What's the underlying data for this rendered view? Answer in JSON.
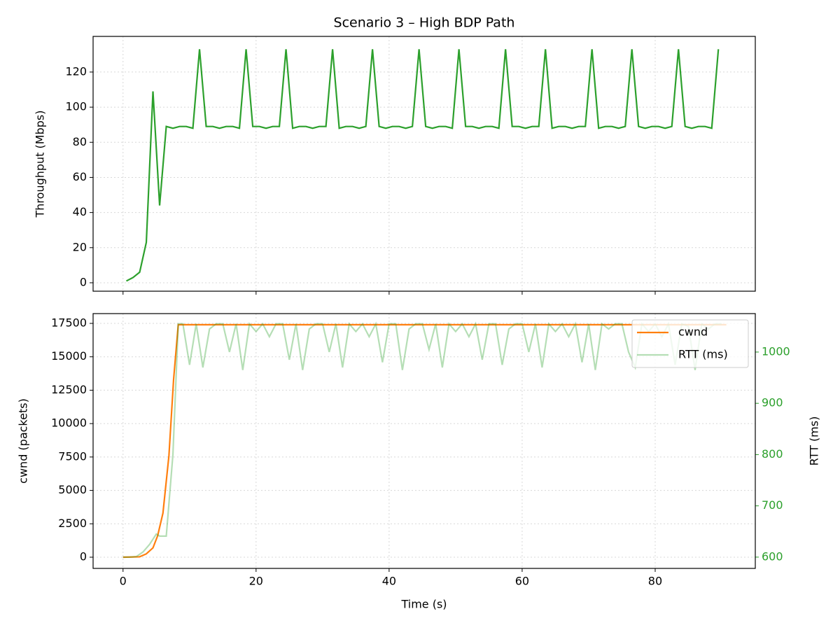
{
  "chart_data": [
    {
      "type": "line",
      "title": "Scenario 3 – High BDP Path",
      "ylabel": "Throughput (Mbps)",
      "color": "#2ca02c",
      "x": [
        0.5,
        1.5,
        2.5,
        3.5,
        4.5,
        5.5,
        6.5,
        7.5,
        8.5,
        9.5,
        10.5,
        11.5,
        12.5,
        13.5,
        14.5,
        15.5,
        16.5,
        17.5,
        18.5,
        19.5,
        20.5,
        21.5,
        22.5,
        23.5,
        24.5,
        25.5,
        26.5,
        27.5,
        28.5,
        29.5,
        30.5,
        31.5,
        32.5,
        33.5,
        34.5,
        35.5,
        36.5,
        37.5,
        38.5,
        39.5,
        40.5,
        41.5,
        42.5,
        43.5,
        44.5,
        45.5,
        46.5,
        47.5,
        48.5,
        49.5,
        50.5,
        51.5,
        52.5,
        53.5,
        54.5,
        55.5,
        56.5,
        57.5,
        58.5,
        59.5,
        60.5,
        61.5,
        62.5,
        63.5,
        64.5,
        65.5,
        66.5,
        67.5,
        68.5,
        69.5,
        70.5,
        71.5,
        72.5,
        73.5,
        74.5,
        75.5,
        76.5,
        77.5,
        78.5,
        79.5,
        80.5,
        81.5,
        82.5,
        83.5,
        84.5,
        85.5,
        86.5,
        87.5,
        88.5,
        89.5
      ],
      "values": [
        1,
        3,
        6,
        23,
        109,
        44,
        89,
        88,
        89,
        89,
        88,
        133,
        89,
        89,
        88,
        89,
        89,
        88,
        133,
        89,
        89,
        88,
        89,
        89,
        133,
        88,
        89,
        89,
        88,
        89,
        89,
        133,
        88,
        89,
        89,
        88,
        89,
        133,
        89,
        88,
        89,
        89,
        88,
        89,
        133,
        89,
        88,
        89,
        89,
        88,
        133,
        89,
        89,
        88,
        89,
        89,
        88,
        133,
        89,
        89,
        88,
        89,
        89,
        133,
        88,
        89,
        89,
        88,
        89,
        89,
        133,
        88,
        89,
        89,
        88,
        89,
        133,
        89,
        88,
        89,
        89,
        88,
        89,
        133,
        89,
        88,
        89,
        89,
        88,
        133
      ],
      "xlim": [
        -4.5,
        95.05
      ],
      "xticks": [
        0,
        20,
        40,
        60,
        80
      ],
      "ylim": [
        -4.8,
        140.3
      ],
      "yticks": [
        0,
        20,
        40,
        60,
        80,
        100,
        120
      ],
      "grid": true
    },
    {
      "type": "line",
      "xlabel": "Time (s)",
      "ylabel": "cwnd (packets)",
      "y2label": "RTT (ms)",
      "xlim": [
        -4.5,
        95.05
      ],
      "xticks": [
        0,
        20,
        40,
        60,
        80
      ],
      "ylim": [
        -838,
        18233
      ],
      "yticks": [
        0,
        2500,
        5000,
        7500,
        10000,
        12500,
        15000,
        17500
      ],
      "y2lim": [
        578,
        1075
      ],
      "y2ticks": [
        600,
        700,
        800,
        900,
        1000
      ],
      "grid": true,
      "legend": "upper right",
      "series": [
        {
          "name": "cwnd",
          "color": "#ff7f0e",
          "opacity": 1,
          "x": [
            0,
            2.5,
            3.5,
            4.5,
            5.2,
            6.0,
            6.9,
            7.6,
            8.3,
            90.7
          ],
          "values": [
            0,
            30,
            250,
            700,
            1600,
            3300,
            7600,
            13300,
            17400,
            17400
          ]
        },
        {
          "name": "RTT (ms)",
          "color": "#2ca02c",
          "opacity": 0.35,
          "axis": "y2",
          "x": [
            0,
            1,
            2,
            3,
            4,
            5,
            5.5,
            6.5,
            7.5,
            8.3,
            9,
            10,
            11,
            12,
            13,
            14,
            15,
            16,
            17,
            18,
            19,
            20,
            21,
            22,
            23,
            24,
            25,
            26,
            27,
            28,
            29,
            30,
            31,
            32,
            33,
            34,
            35,
            36,
            37,
            38,
            39,
            40,
            41,
            42,
            43,
            44,
            45,
            46,
            47,
            48,
            49,
            50,
            51,
            52,
            53,
            54,
            55,
            56,
            57,
            58,
            59,
            60,
            61,
            62,
            63,
            64,
            65,
            66,
            67,
            68,
            69,
            70,
            71,
            72,
            73,
            74,
            75,
            76,
            77,
            78,
            79,
            80,
            81,
            82,
            83,
            84,
            85,
            86,
            87,
            88,
            89,
            90
          ],
          "values": [
            600,
            600,
            601,
            610,
            625,
            645,
            641,
            641,
            800,
            1055,
            1055,
            975,
            1055,
            970,
            1045,
            1055,
            1055,
            1000,
            1055,
            965,
            1055,
            1040,
            1055,
            1030,
            1055,
            1055,
            985,
            1055,
            965,
            1045,
            1055,
            1055,
            1000,
            1055,
            970,
            1055,
            1040,
            1055,
            1030,
            1055,
            980,
            1055,
            1055,
            965,
            1045,
            1055,
            1055,
            1005,
            1055,
            970,
            1055,
            1040,
            1055,
            1030,
            1055,
            985,
            1055,
            1055,
            975,
            1045,
            1055,
            1055,
            1000,
            1055,
            970,
            1055,
            1040,
            1055,
            1030,
            1055,
            980,
            1055,
            965,
            1055,
            1045,
            1055,
            1055,
            1000,
            970,
            1055,
            1040,
            1055,
            1030,
            1055,
            975,
            1055,
            1050,
            965,
            1055,
            1045,
            1055,
            1055
          ]
        }
      ]
    }
  ]
}
